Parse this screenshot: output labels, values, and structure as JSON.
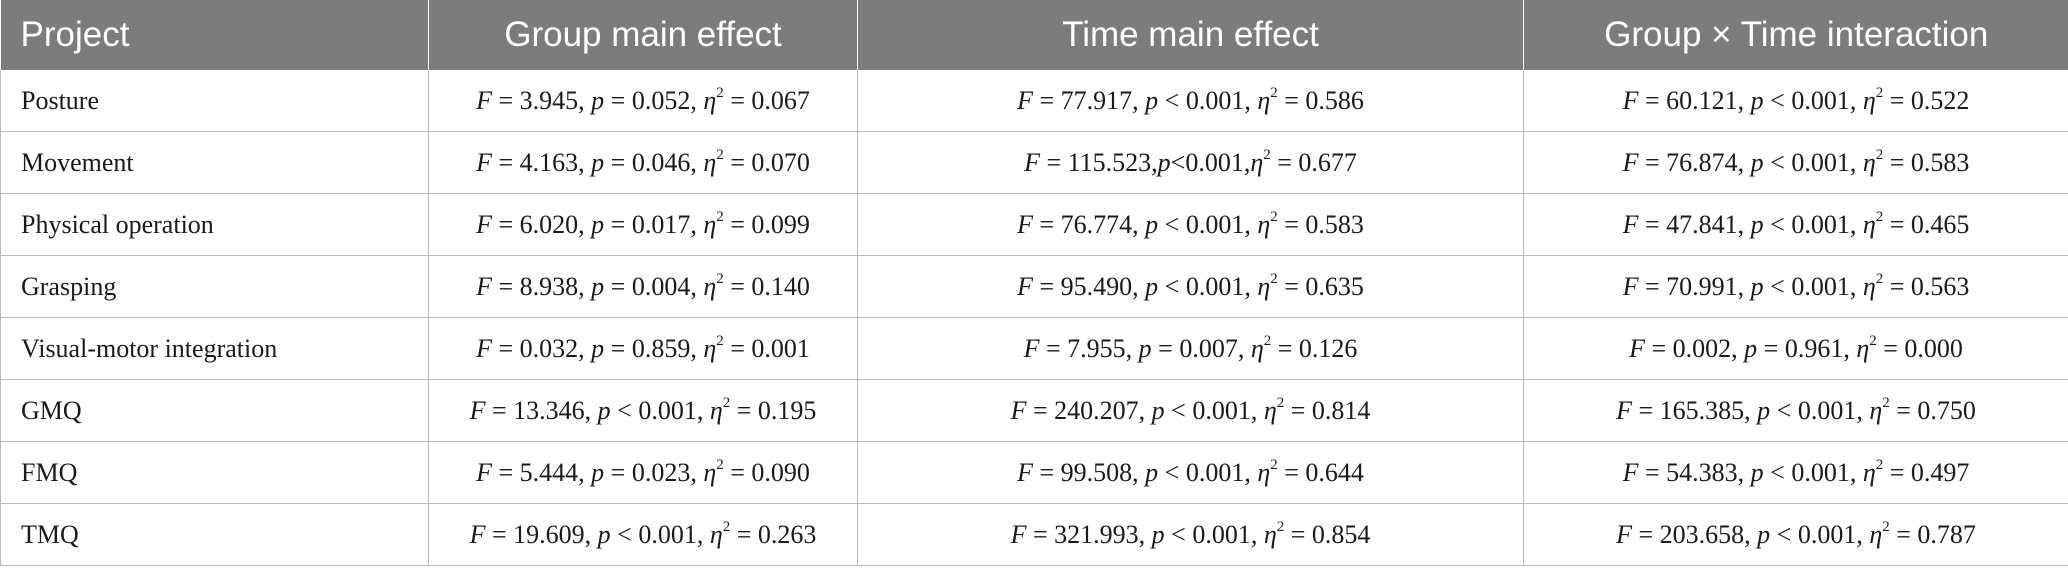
{
  "table": {
    "headers": [
      "Project",
      "Group main effect",
      "Time main effect",
      "Group × Time interaction"
    ],
    "rows": [
      {
        "label": "Posture",
        "group": {
          "F": "3.945",
          "p_op": "=",
          "p": "0.052",
          "eta": "0.067",
          "compact": false
        },
        "time": {
          "F": "77.917",
          "p_op": "<",
          "p": "0.001",
          "eta": "0.586",
          "compact": false
        },
        "interaction": {
          "F": "60.121",
          "p_op": "<",
          "p": "0.001",
          "eta": "0.522",
          "compact": false
        }
      },
      {
        "label": "Movement",
        "group": {
          "F": "4.163",
          "p_op": "=",
          "p": "0.046",
          "eta": "0.070",
          "compact": false
        },
        "time": {
          "F": "115.523",
          "p_op": "<",
          "p": "0.001",
          "eta": "0.677",
          "compact": true
        },
        "interaction": {
          "F": "76.874",
          "p_op": "<",
          "p": "0.001",
          "eta": "0.583",
          "compact": false
        }
      },
      {
        "label": "Physical operation",
        "group": {
          "F": "6.020",
          "p_op": "=",
          "p": "0.017",
          "eta": "0.099",
          "compact": false
        },
        "time": {
          "F": "76.774",
          "p_op": "<",
          "p": "0.001",
          "eta": "0.583",
          "compact": false
        },
        "interaction": {
          "F": "47.841",
          "p_op": "<",
          "p": "0.001",
          "eta": "0.465",
          "compact": false
        }
      },
      {
        "label": "Grasping",
        "group": {
          "F": "8.938",
          "p_op": "=",
          "p": "0.004",
          "eta": "0.140",
          "compact": false
        },
        "time": {
          "F": "95.490",
          "p_op": "<",
          "p": "0.001",
          "eta": "0.635",
          "compact": false
        },
        "interaction": {
          "F": "70.991",
          "p_op": "<",
          "p": "0.001",
          "eta": "0.563",
          "compact": false
        }
      },
      {
        "label": "Visual-motor integration",
        "group": {
          "F": "0.032",
          "p_op": "=",
          "p": "0.859",
          "eta": "0.001",
          "compact": false
        },
        "time": {
          "F": "7.955",
          "p_op": "=",
          "p": "0.007",
          "eta": "0.126",
          "compact": false
        },
        "interaction": {
          "F": "0.002",
          "p_op": "=",
          "p": "0.961",
          "eta": "0.000",
          "compact": false
        }
      },
      {
        "label": "GMQ",
        "group": {
          "F": "13.346",
          "p_op": "<",
          "p": "0.001",
          "eta": "0.195",
          "compact": false
        },
        "time": {
          "F": "240.207",
          "p_op": "<",
          "p": "0.001",
          "eta": "0.814",
          "compact": false
        },
        "interaction": {
          "F": "165.385",
          "p_op": "<",
          "p": "0.001",
          "eta": "0.750",
          "compact": false
        }
      },
      {
        "label": "FMQ",
        "group": {
          "F": "5.444",
          "p_op": "=",
          "p": "0.023",
          "eta": "0.090",
          "compact": false
        },
        "time": {
          "F": "99.508",
          "p_op": "<",
          "p": "0.001",
          "eta": "0.644",
          "compact": false
        },
        "interaction": {
          "F": "54.383",
          "p_op": "<",
          "p": "0.001",
          "eta": "0.497",
          "compact": false
        }
      },
      {
        "label": "TMQ",
        "group": {
          "F": "19.609",
          "p_op": "<",
          "p": "0.001",
          "eta": "0.263",
          "compact": false
        },
        "time": {
          "F": "321.993",
          "p_op": "<",
          "p": "0.001",
          "eta": "0.854",
          "compact": false
        },
        "interaction": {
          "F": "203.658",
          "p_op": "<",
          "p": "0.001",
          "eta": "0.787",
          "compact": false
        }
      }
    ]
  }
}
